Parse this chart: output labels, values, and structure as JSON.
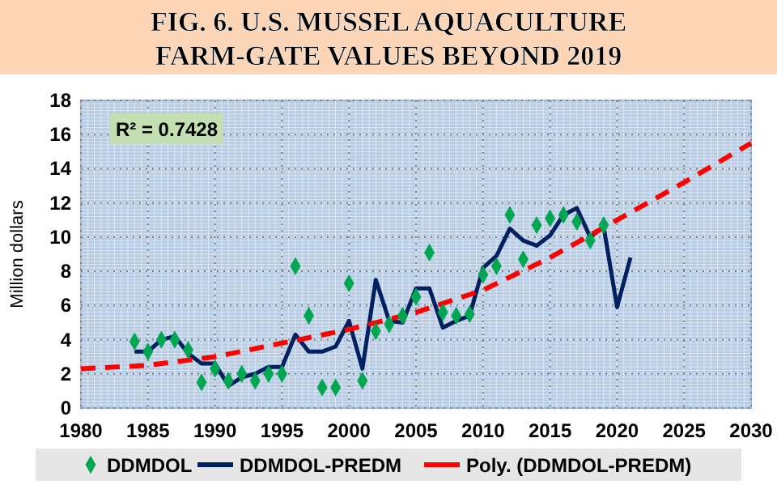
{
  "chart_data": {
    "type": "line",
    "title": "FIG. 6. U.S. MUSSEL AQUACULTURE FARM-GATE VALUES BEYOND 2019",
    "ylabel": "Million dollars",
    "annotations": [
      "R² = 0.7428"
    ],
    "xlim": [
      1980,
      2030
    ],
    "xticks": [
      1980,
      1985,
      1990,
      1995,
      2000,
      2005,
      2010,
      2015,
      2020,
      2025,
      2030
    ],
    "ylim": [
      0,
      18
    ],
    "yticks": [
      0,
      2,
      4,
      6,
      8,
      10,
      12,
      14,
      16,
      18
    ],
    "grid": true,
    "legend": "bottom",
    "series": [
      {
        "name": "DDMDOL",
        "type": "scatter",
        "marker": "diamond",
        "color": "#00a651",
        "x": [
          1984,
          1985,
          1986,
          1987,
          1988,
          1989,
          1990,
          1991,
          1992,
          1993,
          1994,
          1995,
          1996,
          1997,
          1998,
          1999,
          2000,
          2001,
          2002,
          2003,
          2004,
          2005,
          2006,
          2007,
          2008,
          2009,
          2010,
          2011,
          2012,
          2013,
          2014,
          2015,
          2016,
          2017,
          2018,
          2019
        ],
        "values": [
          3.9,
          3.3,
          4.0,
          4.0,
          3.4,
          1.5,
          2.3,
          1.6,
          2.0,
          1.6,
          2.0,
          2.0,
          8.3,
          5.4,
          1.2,
          1.2,
          7.3,
          1.6,
          4.5,
          4.9,
          5.4,
          6.5,
          9.1,
          5.6,
          5.4,
          5.5,
          7.8,
          8.3,
          11.3,
          8.7,
          10.7,
          11.1,
          11.3,
          10.9,
          9.8,
          10.7
        ]
      },
      {
        "name": "DDMDOL-PREDM",
        "line_style": "solid",
        "color": "#002060",
        "x": [
          1984,
          1985,
          1986,
          1987,
          1988,
          1989,
          1990,
          1991,
          1992,
          1993,
          1994,
          1995,
          1996,
          1997,
          1998,
          1999,
          2000,
          2001,
          2002,
          2003,
          2004,
          2005,
          2006,
          2007,
          2008,
          2009,
          2010,
          2011,
          2012,
          2013,
          2014,
          2015,
          2016,
          2017,
          2018,
          2019,
          2020,
          2021
        ],
        "values": [
          3.3,
          3.3,
          4.0,
          4.2,
          3.2,
          2.6,
          2.6,
          1.3,
          1.8,
          2.0,
          2.4,
          2.4,
          4.3,
          3.3,
          3.3,
          3.6,
          5.1,
          2.3,
          7.5,
          5.1,
          5.0,
          7.0,
          7.0,
          4.7,
          5.1,
          5.4,
          8.2,
          8.9,
          10.5,
          9.8,
          9.5,
          10.1,
          11.3,
          11.7,
          10.0,
          10.6,
          5.9,
          8.8
        ]
      },
      {
        "name": "Poly. (DDMDOL-PREDM)",
        "line_style": "dashed",
        "color": "#ff0000",
        "x": [
          1980,
          1985,
          1990,
          1995,
          2000,
          2005,
          2010,
          2015,
          2020,
          2025,
          2030
        ],
        "values": [
          2.3,
          2.5,
          3.0,
          3.8,
          4.6,
          5.6,
          6.9,
          8.8,
          11.0,
          13.2,
          15.5
        ]
      }
    ]
  }
}
